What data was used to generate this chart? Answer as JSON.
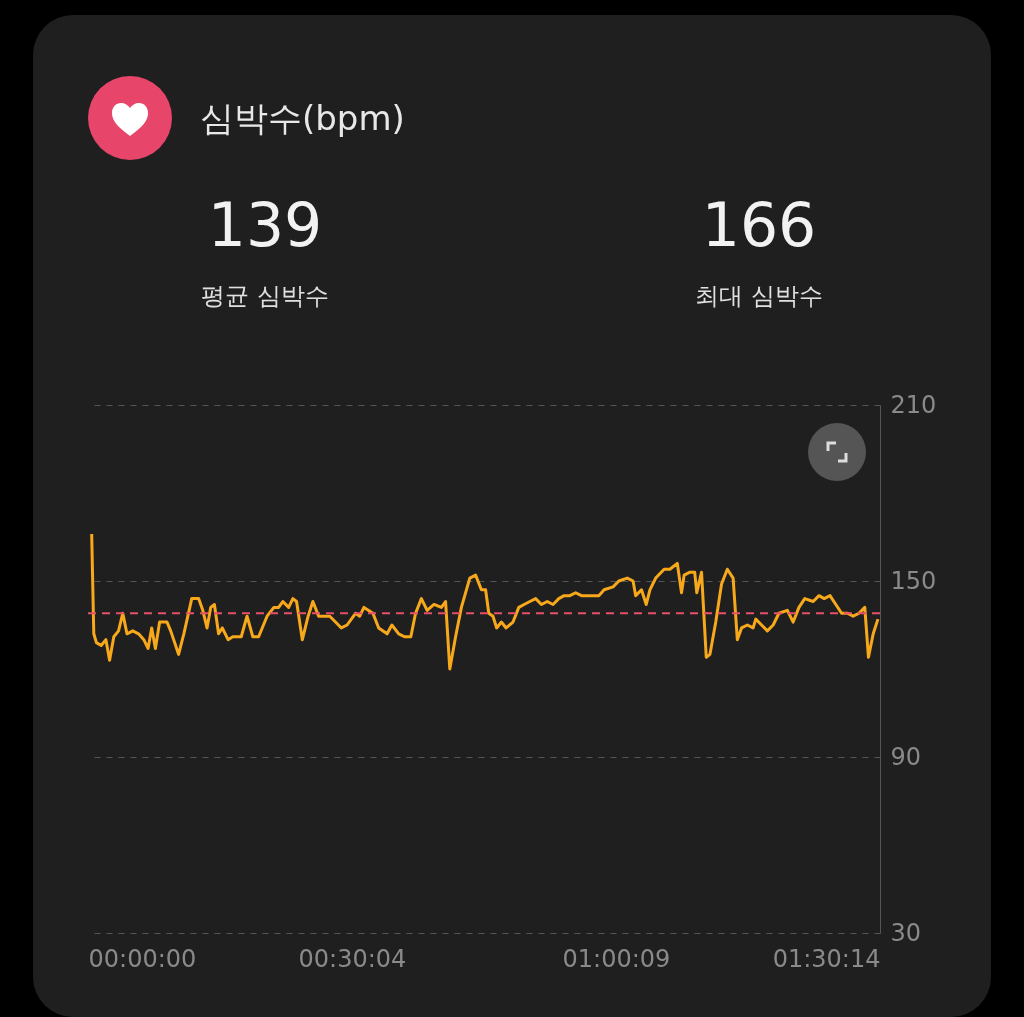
{
  "chart_data": {
    "type": "line",
    "title": "심박수(bpm)",
    "annotations": [
      "139",
      "평균 심박수",
      "166",
      "최대 심박수"
    ],
    "x": [
      0.007,
      0.011,
      0.016,
      0.025,
      0.034,
      0.041,
      0.049,
      0.058,
      0.066,
      0.074,
      0.085,
      0.096,
      0.106,
      0.114,
      0.121,
      0.128,
      0.136,
      0.15,
      0.157,
      0.172,
      0.182,
      0.197,
      0.21,
      0.218,
      0.226,
      0.233,
      0.24,
      0.248,
      0.255,
      0.266,
      0.275,
      0.291,
      0.302,
      0.313,
      0.324,
      0.34,
      0.353,
      0.362,
      0.37,
      0.381,
      0.389,
      0.396,
      0.407,
      0.418,
      0.427,
      0.438,
      0.459,
      0.47,
      0.481,
      0.492,
      0.508,
      0.516,
      0.524,
      0.541,
      0.552,
      0.568,
      0.577,
      0.59,
      0.601,
      0.613,
      0.622,
      0.633,
      0.644,
      0.657,
      0.671,
      0.679,
      0.687,
      0.698,
      0.709,
      0.725,
      0.736,
      0.747,
      0.755,
      0.761,
      0.769,
      0.776,
      0.785,
      0.794,
      0.807,
      0.818,
      0.828,
      0.839,
      0.85,
      0.861,
      0.872,
      0.883,
      0.894,
      0.904,
      0.915,
      0.926,
      0.937,
      0.948,
      0.97,
      0.98,
      0.997,
      1.008,
      1.024,
      1.035,
      1.04,
      1.051,
      1.06,
      1.067,
      1.078,
      1.094,
      1.105,
      1.119,
      1.127,
      1.132,
      1.143,
      1.152,
      1.156,
      1.165,
      1.174,
      1.181,
      1.192,
      1.203,
      1.214,
      1.225,
      1.233,
      1.241,
      1.252,
      1.263,
      1.268,
      1.279,
      1.29,
      1.301,
      1.312,
      1.328,
      1.339,
      1.35,
      1.361,
      1.377,
      1.388,
      1.398,
      1.409,
      1.42,
      1.431,
      1.442,
      1.453,
      1.464,
      1.475,
      1.482,
      1.491,
      1.5
    ],
    "series": [
      {
        "color": "#f7a81b",
        "values": [
          166,
          132,
          129,
          128,
          130,
          123,
          131,
          133,
          139,
          132,
          133,
          132,
          130,
          127,
          134,
          127,
          136,
          136,
          133,
          125,
          132,
          144,
          144,
          140,
          134,
          141,
          142,
          132,
          134,
          130,
          131,
          131,
          138,
          131,
          131,
          138,
          141,
          141,
          143,
          141,
          144,
          143,
          130,
          138,
          143,
          138,
          138,
          136,
          134,
          135,
          139,
          138,
          141,
          139,
          134,
          132,
          135,
          132,
          131,
          131,
          139,
          144,
          140,
          142,
          141,
          143,
          120,
          131,
          141,
          151,
          152,
          147,
          147,
          139,
          138,
          134,
          136,
          134,
          136,
          141,
          142,
          143,
          144,
          142,
          143,
          142,
          144,
          145,
          145,
          146,
          145,
          145,
          145,
          147,
          148,
          150,
          151,
          150,
          145,
          147,
          142,
          147,
          151,
          154,
          154,
          156,
          146,
          152,
          153,
          153,
          146,
          153,
          124,
          125,
          136,
          149,
          154,
          151,
          130,
          134,
          135,
          134,
          137,
          135,
          133,
          135,
          139,
          140,
          136,
          141,
          144,
          143,
          145,
          144,
          145,
          142,
          139,
          139,
          138,
          139,
          141,
          124,
          132,
          137
        ]
      }
    ],
    "xlim": [
      0,
      1.50389
    ],
    "xticks": [
      {
        "value": 0,
        "label": "00:00:00"
      },
      {
        "value": 0.50111,
        "label": "00:30:04"
      },
      {
        "value": 1.0025,
        "label": "01:00:09"
      },
      {
        "value": 1.50389,
        "label": "01:30:14"
      }
    ],
    "ylim": [
      30,
      210
    ],
    "yticks": [
      30,
      90,
      150,
      210
    ],
    "ref_lines": [
      {
        "axis": "y",
        "value": 139,
        "color": "#e8506a",
        "line_style": "dashed"
      }
    ],
    "grid": "y",
    "line_style": "solid"
  }
}
